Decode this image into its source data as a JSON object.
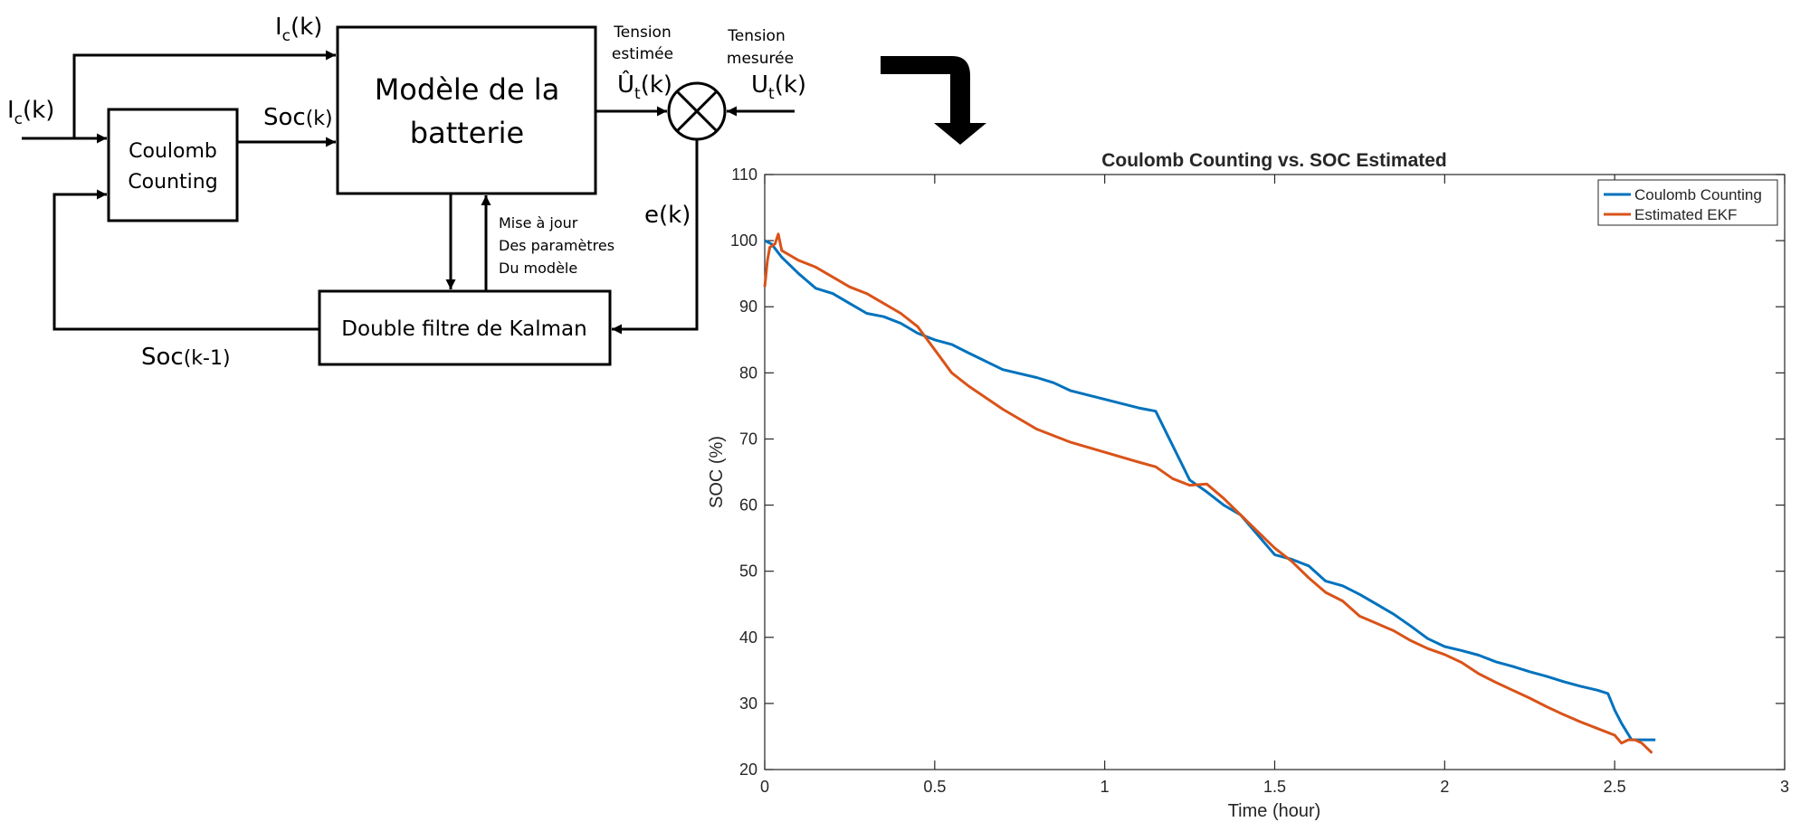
{
  "diagram": {
    "boxes": {
      "model": {
        "line1": "Modèle de la",
        "line2": "batterie"
      },
      "coulomb": {
        "line1": "Coulomb",
        "line2": "Counting"
      },
      "kalman": {
        "label": "Double filtre de Kalman"
      }
    },
    "labels": {
      "ic_input": {
        "base": "I",
        "sub": "c",
        "tail": "(k)"
      },
      "ic_top": {
        "base": "I",
        "sub": "c",
        "tail": "(k)"
      },
      "soc_k": {
        "base": "Soc",
        "tail": "(k)"
      },
      "soc_k1": {
        "base": "Soc",
        "tail": "(k-1)"
      },
      "estimated_voltage_caption": {
        "line1": "Tension",
        "line2": "estimée"
      },
      "estimated_voltage": {
        "base": "Û",
        "sub": "t",
        "tail": "(k)"
      },
      "measured_voltage_caption": {
        "line1": "Tension",
        "line2": "mesurée"
      },
      "measured_voltage": {
        "base": "U",
        "sub": "t",
        "tail": "(k)"
      },
      "error": "e(k)",
      "update_note": {
        "line1": "Mise à jour",
        "line2": "Des paramètres",
        "line3": "Du modèle"
      }
    }
  },
  "chart_data": {
    "type": "line",
    "title": "Coulomb Counting vs. SOC Estimated",
    "xlabel": "Time (hour)",
    "ylabel": "SOC (%)",
    "xlim": [
      0,
      3
    ],
    "ylim": [
      20,
      110
    ],
    "xticks": [
      0,
      0.5,
      1,
      1.5,
      2,
      2.5,
      3
    ],
    "xtick_labels": [
      "0",
      "0.5",
      "1",
      "1.5",
      "2",
      "2.5",
      "3"
    ],
    "yticks": [
      20,
      30,
      40,
      50,
      60,
      70,
      80,
      90,
      100,
      110
    ],
    "ytick_labels": [
      "20",
      "30",
      "40",
      "50",
      "60",
      "70",
      "80",
      "90",
      "100",
      "110"
    ],
    "grid": false,
    "legend_position": "top-right",
    "series": [
      {
        "name": "Coulomb Counting",
        "color": "#0072BD",
        "x": [
          0,
          0.02,
          0.05,
          0.1,
          0.15,
          0.2,
          0.25,
          0.3,
          0.35,
          0.4,
          0.45,
          0.5,
          0.55,
          0.6,
          0.7,
          0.8,
          0.85,
          0.9,
          1.0,
          1.1,
          1.15,
          1.2,
          1.25,
          1.3,
          1.35,
          1.4,
          1.45,
          1.5,
          1.55,
          1.6,
          1.65,
          1.7,
          1.75,
          1.8,
          1.85,
          1.9,
          1.95,
          2.0,
          2.05,
          2.1,
          2.15,
          2.2,
          2.25,
          2.3,
          2.35,
          2.4,
          2.45,
          2.48,
          2.5,
          2.52,
          2.55,
          2.6,
          2.62
        ],
        "y": [
          100,
          99.5,
          97.5,
          95,
          92.8,
          92,
          90.5,
          89,
          88.5,
          87.5,
          86,
          85,
          84.3,
          83,
          80.5,
          79.3,
          78.5,
          77.3,
          76,
          74.7,
          74.2,
          69,
          63.8,
          62,
          60,
          58.5,
          55.5,
          52.5,
          51.8,
          50.8,
          48.5,
          47.8,
          46.5,
          45,
          43.5,
          41.7,
          39.8,
          38.6,
          38,
          37.3,
          36.3,
          35.6,
          34.8,
          34.1,
          33.3,
          32.6,
          32,
          31.5,
          29,
          27,
          24.5,
          24.5,
          24.5
        ]
      },
      {
        "name": "Estimated EKF",
        "color": "#D95319",
        "x": [
          0,
          0.008,
          0.015,
          0.03,
          0.04,
          0.05,
          0.1,
          0.15,
          0.2,
          0.25,
          0.3,
          0.35,
          0.4,
          0.45,
          0.5,
          0.55,
          0.6,
          0.7,
          0.8,
          0.9,
          1.0,
          1.1,
          1.15,
          1.2,
          1.25,
          1.3,
          1.35,
          1.4,
          1.45,
          1.5,
          1.55,
          1.6,
          1.65,
          1.7,
          1.75,
          1.8,
          1.85,
          1.9,
          1.95,
          2.0,
          2.05,
          2.1,
          2.15,
          2.2,
          2.25,
          2.3,
          2.35,
          2.4,
          2.45,
          2.5,
          2.52,
          2.54,
          2.56,
          2.58,
          2.6,
          2.61
        ],
        "y": [
          93,
          97,
          99,
          99.5,
          101,
          98.5,
          97,
          96,
          94.5,
          93,
          92,
          90.5,
          89,
          87,
          83.5,
          80,
          78,
          74.5,
          71.5,
          69.5,
          68,
          66.5,
          65.8,
          64,
          63,
          63.2,
          61,
          58.5,
          56,
          53.5,
          51.5,
          49,
          46.8,
          45.5,
          43.2,
          42.1,
          41,
          39.5,
          38.3,
          37.4,
          36.2,
          34.5,
          33.2,
          32,
          30.8,
          29.5,
          28.3,
          27.2,
          26.2,
          25.2,
          24,
          24.5,
          24.5,
          24,
          23,
          22.5
        ]
      }
    ]
  }
}
